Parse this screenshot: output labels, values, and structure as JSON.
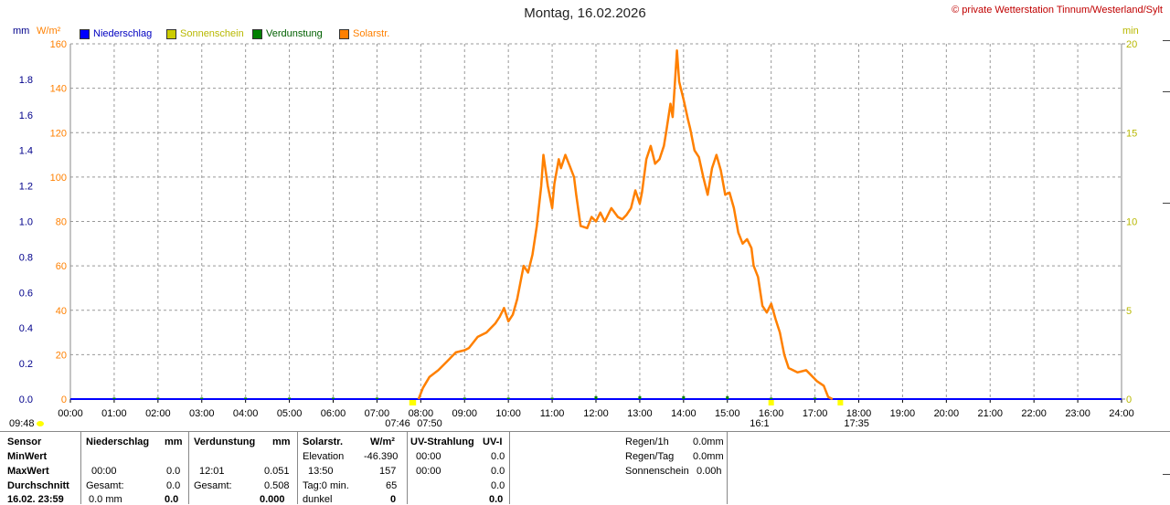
{
  "window": {
    "title": "Montag, 16.02.2026",
    "copyright": "© private Wetterstation Tinnum/Westerland/Sylt"
  },
  "colors": {
    "niederschlag": "#0000ff",
    "sonnenschein": "#cccc00",
    "verdunstung": "#008000",
    "solar": "#ff8000",
    "grid": "#999999"
  },
  "units": {
    "left1": "mm",
    "left2": "W/m²",
    "right": "min"
  },
  "legend": [
    {
      "label": "Niederschlag",
      "color": "#0000ff",
      "text_color": "#0000c0"
    },
    {
      "label": "Sonnenschein",
      "color": "#cccc00",
      "text_color": "#b8b800"
    },
    {
      "label": "Verdunstung",
      "color": "#008000",
      "text_color": "#006000"
    },
    {
      "label": "Solarstr.",
      "color": "#ff8000",
      "text_color": "#ff8000"
    }
  ],
  "chart_data": {
    "type": "line",
    "title": "Montag, 16.02.2026",
    "x_ticks": [
      "00:00",
      "01:00",
      "02:00",
      "03:00",
      "04:00",
      "05:00",
      "06:00",
      "07:00",
      "08:00",
      "09:00",
      "10:00",
      "11:00",
      "12:00",
      "13:00",
      "14:00",
      "15:00",
      "16:00",
      "17:00",
      "18:00",
      "19:00",
      "20:00",
      "21:00",
      "22:00",
      "23:00",
      "24:00"
    ],
    "xlim_hours": [
      0,
      24
    ],
    "y_mm_ticks": [
      "0.0",
      "0.2",
      "0.4",
      "0.6",
      "0.8",
      "1.0",
      "1.2",
      "1.4",
      "1.6",
      "1.8"
    ],
    "y_wm2_ticks": [
      "0",
      "20",
      "40",
      "60",
      "80",
      "100",
      "120",
      "140",
      "160"
    ],
    "y_min_ticks": [
      "0",
      "5",
      "10",
      "15",
      "20"
    ],
    "ylim_wm2": [
      0,
      160
    ],
    "ylim_mm": [
      0,
      2.0
    ],
    "ylim_min": [
      0,
      20
    ],
    "grid": true,
    "series": [
      {
        "name": "Solarstr.",
        "unit": "W/m²",
        "points": [
          [
            7.95,
            0
          ],
          [
            8.05,
            5
          ],
          [
            8.2,
            10
          ],
          [
            8.4,
            13
          ],
          [
            8.6,
            17
          ],
          [
            8.8,
            21
          ],
          [
            9.0,
            22
          ],
          [
            9.1,
            23
          ],
          [
            9.3,
            28
          ],
          [
            9.5,
            30
          ],
          [
            9.7,
            34
          ],
          [
            9.8,
            37
          ],
          [
            9.9,
            41
          ],
          [
            10.0,
            35
          ],
          [
            10.1,
            38
          ],
          [
            10.2,
            45
          ],
          [
            10.3,
            55
          ],
          [
            10.35,
            60
          ],
          [
            10.45,
            57
          ],
          [
            10.55,
            65
          ],
          [
            10.65,
            78
          ],
          [
            10.75,
            96
          ],
          [
            10.8,
            110
          ],
          [
            10.9,
            96
          ],
          [
            11.0,
            86
          ],
          [
            11.05,
            97
          ],
          [
            11.15,
            108
          ],
          [
            11.2,
            104
          ],
          [
            11.3,
            110
          ],
          [
            11.4,
            105
          ],
          [
            11.5,
            100
          ],
          [
            11.55,
            92
          ],
          [
            11.65,
            78
          ],
          [
            11.8,
            77
          ],
          [
            11.9,
            82
          ],
          [
            12.0,
            80
          ],
          [
            12.1,
            84
          ],
          [
            12.2,
            80
          ],
          [
            12.35,
            86
          ],
          [
            12.5,
            82
          ],
          [
            12.6,
            81
          ],
          [
            12.7,
            83
          ],
          [
            12.8,
            86
          ],
          [
            12.9,
            94
          ],
          [
            13.0,
            88
          ],
          [
            13.05,
            93
          ],
          [
            13.15,
            108
          ],
          [
            13.25,
            114
          ],
          [
            13.35,
            106
          ],
          [
            13.45,
            108
          ],
          [
            13.55,
            114
          ],
          [
            13.6,
            120
          ],
          [
            13.7,
            133
          ],
          [
            13.75,
            127
          ],
          [
            13.8,
            142
          ],
          [
            13.85,
            157
          ],
          [
            13.9,
            143
          ],
          [
            14.0,
            135
          ],
          [
            14.1,
            126
          ],
          [
            14.15,
            122
          ],
          [
            14.25,
            112
          ],
          [
            14.35,
            109
          ],
          [
            14.45,
            100
          ],
          [
            14.55,
            92
          ],
          [
            14.65,
            104
          ],
          [
            14.75,
            110
          ],
          [
            14.85,
            103
          ],
          [
            14.95,
            92
          ],
          [
            15.05,
            93
          ],
          [
            15.15,
            86
          ],
          [
            15.25,
            75
          ],
          [
            15.35,
            70
          ],
          [
            15.45,
            72
          ],
          [
            15.55,
            68
          ],
          [
            15.6,
            60
          ],
          [
            15.7,
            55
          ],
          [
            15.8,
            42
          ],
          [
            15.9,
            39
          ],
          [
            16.0,
            43
          ],
          [
            16.1,
            36
          ],
          [
            16.2,
            30
          ],
          [
            16.3,
            20
          ],
          [
            16.4,
            14
          ],
          [
            16.6,
            12
          ],
          [
            16.8,
            13
          ],
          [
            16.95,
            10
          ],
          [
            17.05,
            8
          ],
          [
            17.2,
            6
          ],
          [
            17.3,
            1
          ],
          [
            17.4,
            0
          ]
        ]
      },
      {
        "name": "Niederschlag",
        "unit": "mm",
        "points": [
          [
            0,
            0
          ],
          [
            24,
            0
          ]
        ]
      },
      {
        "name": "Verdunstung",
        "unit": "mm",
        "bars": [
          [
            1,
            0.008
          ],
          [
            2,
            0.008
          ],
          [
            3,
            0.008
          ],
          [
            4,
            0.008
          ],
          [
            5,
            0.008
          ],
          [
            6,
            0.008
          ],
          [
            7,
            0.008
          ],
          [
            9,
            0.008
          ],
          [
            10,
            0.008
          ],
          [
            11,
            0.008
          ],
          [
            12,
            0.016
          ],
          [
            13,
            0.016
          ],
          [
            14,
            0.016
          ],
          [
            15,
            0.016
          ],
          [
            16,
            0.008
          ],
          [
            17,
            0.008
          ]
        ]
      }
    ],
    "sun_markers": [
      {
        "hour": 7.8,
        "label": "07:46"
      },
      {
        "hour": 7.83,
        "label": "07:50"
      },
      {
        "hour": 16.0,
        "label": "16:1"
      },
      {
        "hour": 17.58,
        "label": "17:35"
      }
    ]
  },
  "below": {
    "left_time": "09:48"
  },
  "table": {
    "headers": {
      "sensor": "Sensor",
      "niederschlag": "Niederschlag",
      "niederschlag_unit": "mm",
      "verdunstung": "Verdunstung",
      "verdunstung_unit": "mm",
      "solar": "Solarstr.",
      "solar_unit": "W/m²",
      "uv": "UV-Strahlung",
      "uv_unit": "UV-I"
    },
    "rows": {
      "minwert": "MinWert",
      "maxwert": "MaxWert",
      "durchschnitt": "Durchschnitt",
      "datum": "16.02. 23:59"
    },
    "niederschlag": {
      "max_time": "00:00",
      "max_val": "0.0",
      "gesamt_label": "Gesamt:",
      "gesamt_val": "0.0",
      "last_left": "0.0 mm",
      "last_right": "0.0"
    },
    "verdunstung": {
      "max_time": "12:01",
      "max_val": "0.051",
      "gesamt_label": "Gesamt:",
      "gesamt_val": "0.508",
      "last_val": "0.000"
    },
    "solar": {
      "elev_label": "Elevation",
      "elev_val": "-46.390",
      "max_time": "13:50",
      "max_val": "157",
      "tag_label": "Tag:0 min.",
      "tag_val": "65",
      "dunkel_label": "dunkel",
      "dunkel_val": "0"
    },
    "uv": {
      "min_time": "00:00",
      "min_val": "0.0",
      "max_time": "00:00",
      "max_val": "0.0",
      "avg_val": "0.0",
      "last_val": "0.0"
    },
    "regen": {
      "r1h_label": "Regen/1h",
      "r1h_val": "0.0mm",
      "tag_label": "Regen/Tag",
      "tag_val": "0.0mm",
      "sonne_label": "Sonnenschein",
      "sonne_val": "0.00h"
    }
  }
}
